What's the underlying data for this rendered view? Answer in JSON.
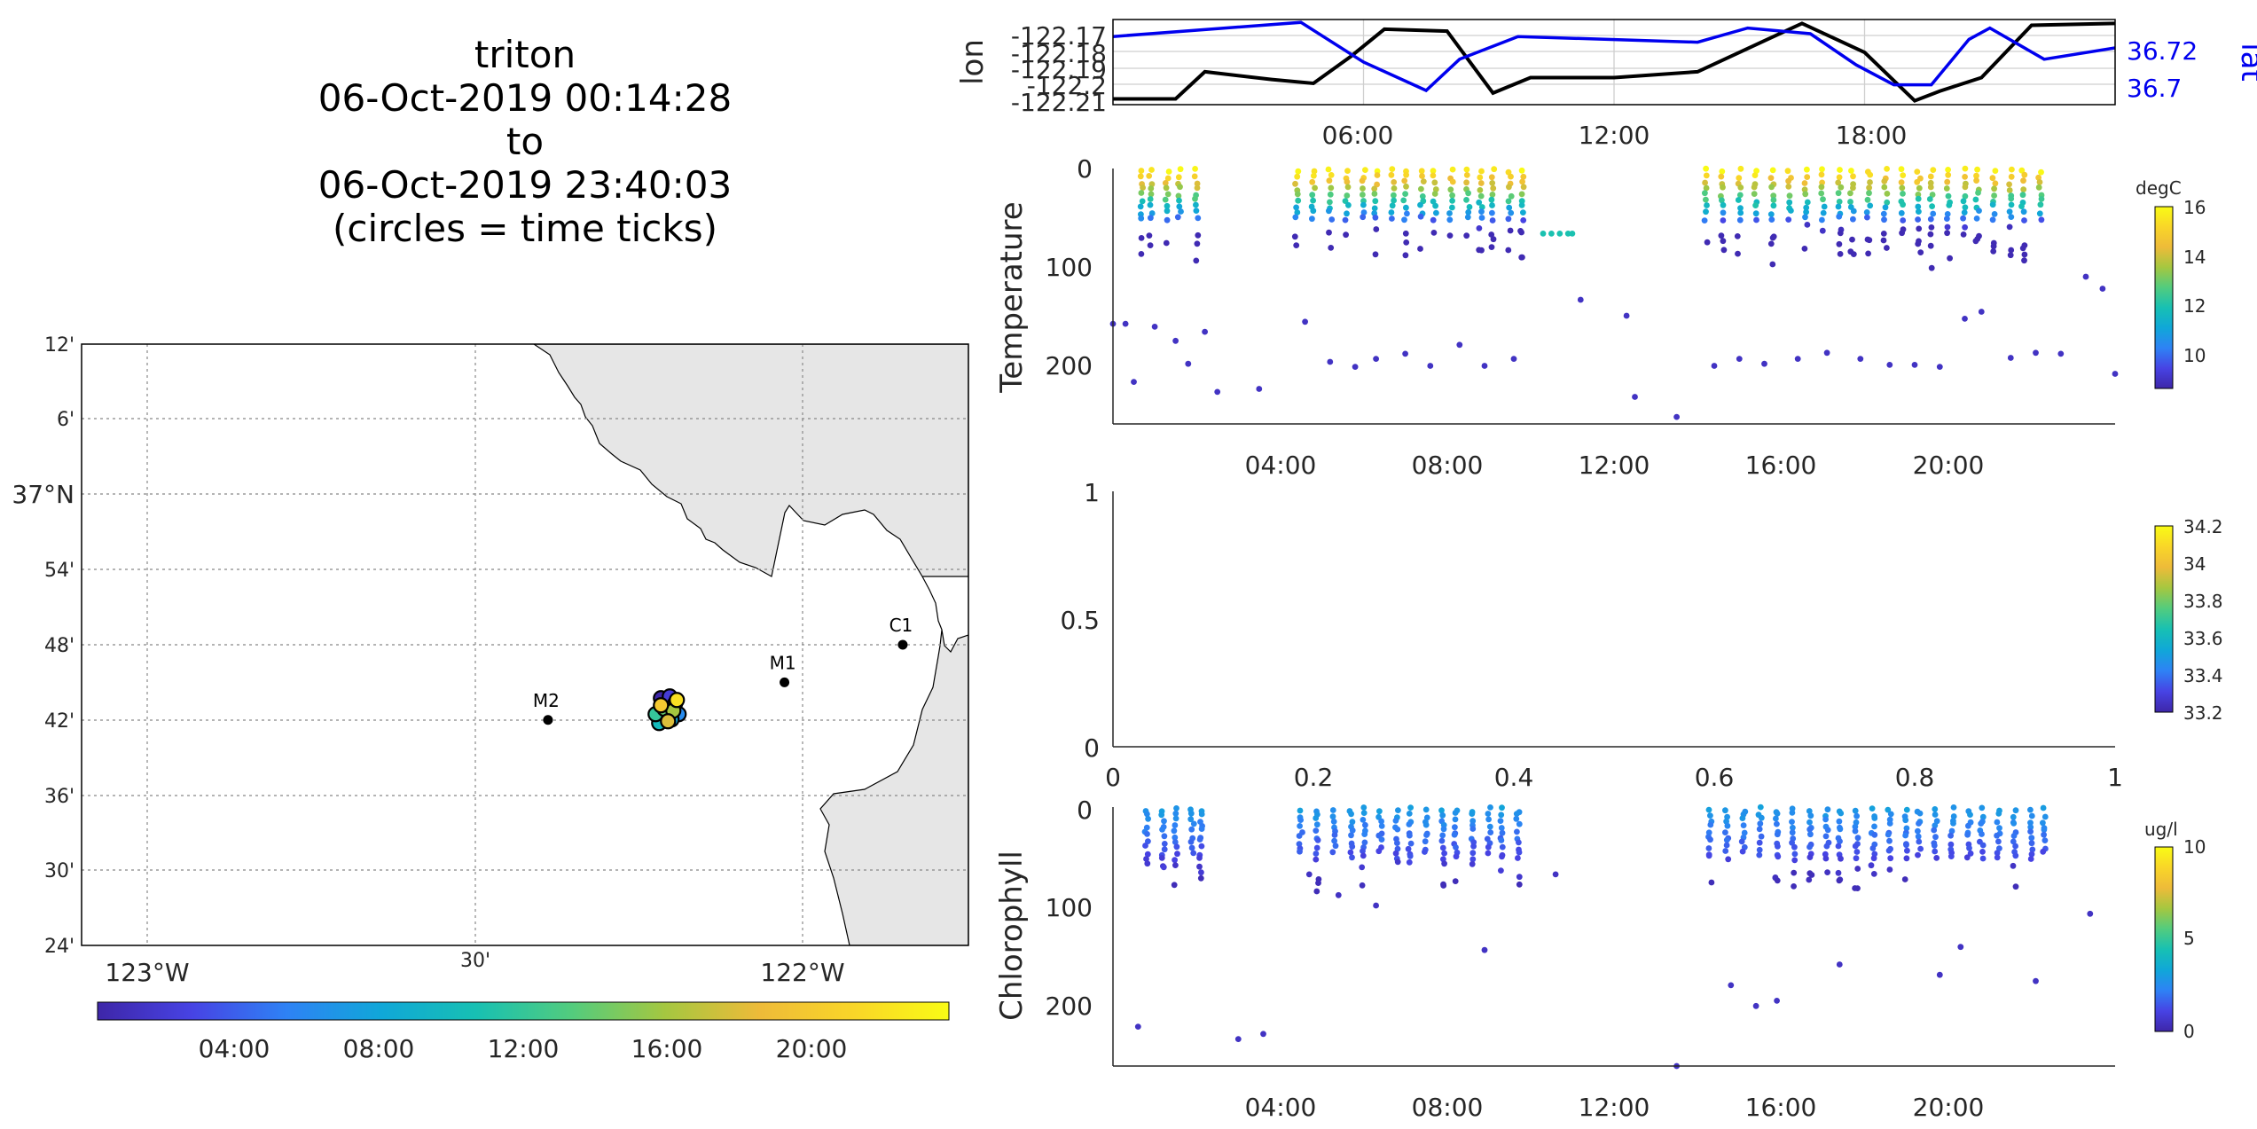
{
  "title": {
    "lines": [
      "triton",
      "06-Oct-2019 00:14:28",
      "to",
      "06-Oct-2019 23:40:03",
      "(circles = time ticks)"
    ]
  },
  "colors": {
    "coast_fill": "#e6e6e6",
    "track_lon": "#000000",
    "track_lat": "#0000ee",
    "parula": [
      "#3e26a8",
      "#4743e4",
      "#2e82f5",
      "#10a7d8",
      "#17c0b3",
      "#52cc7e",
      "#a5c740",
      "#eebb39",
      "#f9d628",
      "#f9fb15"
    ]
  },
  "map": {
    "lat_ticks": [
      "12'",
      "6'",
      "37°N",
      "54'",
      "48'",
      "42'",
      "36'",
      "30'",
      "24'"
    ],
    "lon_ticks": [
      "123°W",
      "30'",
      "122°W"
    ],
    "colorbar_ticks": [
      "04:00",
      "08:00",
      "12:00",
      "16:00",
      "20:00"
    ]
  },
  "track": {
    "y_ticks_left": [
      "-122.17",
      "-122.18",
      "-122.19",
      "-122.2",
      "-122.21"
    ],
    "y_ticks_right": [
      "36.72",
      "36.7"
    ],
    "x_ticks": [
      "06:00",
      "12:00",
      "18:00"
    ],
    "ylabel_left": "lon",
    "ylabel_right": "lat"
  },
  "temperature": {
    "ylabel": "Temperature",
    "y_ticks": [
      "0",
      "100",
      "200"
    ],
    "x_ticks": [
      "04:00",
      "08:00",
      "12:00",
      "16:00",
      "20:00"
    ],
    "cb_label": "degC",
    "cb_ticks": [
      "16",
      "14",
      "12",
      "10"
    ]
  },
  "salinity": {
    "y_ticks": [
      "1",
      "0.5",
      "0"
    ],
    "x_ticks": [
      "0",
      "0.2",
      "0.4",
      "0.6",
      "0.8",
      "1"
    ],
    "cb_ticks": [
      "34.2",
      "34",
      "33.8",
      "33.6",
      "33.4",
      "33.2"
    ]
  },
  "chlorophyll": {
    "ylabel": "Chlorophyll",
    "y_ticks": [
      "0",
      "100",
      "200"
    ],
    "x_ticks": [
      "04:00",
      "08:00",
      "12:00",
      "16:00",
      "20:00"
    ],
    "cb_label": "ug/l",
    "cb_ticks": [
      "10",
      "5",
      "0"
    ]
  },
  "chart_data": [
    {
      "type": "scatter",
      "name": "map",
      "x_range_lon": [
        -123.1,
        -121.75
      ],
      "y_range_lat": [
        36.4,
        37.2
      ],
      "stations": [
        {
          "name": "M2",
          "lon": -122.39,
          "lat": 36.7
        },
        {
          "name": "M1",
          "lon": -122.03,
          "lat": 36.75
        },
        {
          "name": "C1",
          "lon": -121.85,
          "lat": 36.8
        }
      ],
      "track_center": {
        "lon": -122.21,
        "lat": 36.71
      },
      "time_colorbar_range_hours": [
        0,
        23.67
      ]
    },
    {
      "type": "line",
      "name": "position-track",
      "x_unit": "hour",
      "xlim": [
        0,
        24
      ],
      "lon_ylim": [
        -122.212,
        -122.168
      ],
      "lat_ylim": [
        36.695,
        36.725
      ],
      "lon": [
        [
          0,
          -122.209
        ],
        [
          1.5,
          -122.209
        ],
        [
          2.2,
          -122.195
        ],
        [
          3.8,
          -122.199
        ],
        [
          4.8,
          -122.201
        ],
        [
          5.7,
          -122.187
        ],
        [
          6.5,
          -122.173
        ],
        [
          8,
          -122.174
        ],
        [
          9.1,
          -122.206
        ],
        [
          10,
          -122.198
        ],
        [
          12,
          -122.198
        ],
        [
          14,
          -122.195
        ],
        [
          15.7,
          -122.178
        ],
        [
          16.5,
          -122.17
        ],
        [
          18.0,
          -122.185
        ],
        [
          19.2,
          -122.21
        ],
        [
          19.8,
          -122.205
        ],
        [
          20.8,
          -122.198
        ],
        [
          22.0,
          -122.171
        ],
        [
          24,
          -122.17
        ]
      ],
      "lat": [
        [
          0,
          36.719
        ],
        [
          4.5,
          36.724
        ],
        [
          6.0,
          36.71
        ],
        [
          7.5,
          36.7
        ],
        [
          8.3,
          36.711
        ],
        [
          9.7,
          36.719
        ],
        [
          14,
          36.717
        ],
        [
          15.2,
          36.722
        ],
        [
          16.7,
          36.72
        ],
        [
          17.8,
          36.709
        ],
        [
          18.7,
          36.702
        ],
        [
          19.6,
          36.702
        ],
        [
          20.5,
          36.718
        ],
        [
          21.0,
          36.722
        ],
        [
          22.3,
          36.711
        ],
        [
          24,
          36.715
        ]
      ]
    },
    {
      "type": "scatter",
      "name": "temperature-profiles",
      "x_unit": "hour",
      "y_unit": "depth",
      "y_reversed": true,
      "xlim": [
        0,
        24
      ],
      "ylim": [
        0,
        255
      ],
      "color_unit": "degC",
      "clim": [
        8.7,
        16
      ],
      "profile_times": [
        0.7,
        0.9,
        1.3,
        1.6,
        2.0,
        4.4,
        4.8,
        5.2,
        5.6,
        6.0,
        6.3,
        6.7,
        7.0,
        7.4,
        7.7,
        8.1,
        8.5,
        8.8,
        9.1,
        9.5,
        9.8,
        14.2,
        14.6,
        15.0,
        15.4,
        15.8,
        16.2,
        16.6,
        17.0,
        17.4,
        17.7,
        18.1,
        18.5,
        18.9,
        19.3,
        19.6,
        20.0,
        20.4,
        20.7,
        21.1,
        21.5,
        21.8,
        22.2
      ],
      "deep_points": [
        [
          0.0,
          155
        ],
        [
          0.3,
          155
        ],
        [
          0.5,
          213
        ],
        [
          1.0,
          158
        ],
        [
          1.5,
          172
        ],
        [
          1.8,
          195
        ],
        [
          2.2,
          163
        ],
        [
          2.5,
          223
        ],
        [
          3.5,
          220
        ],
        [
          4.6,
          153
        ],
        [
          5.2,
          193
        ],
        [
          5.8,
          198
        ],
        [
          6.3,
          190
        ],
        [
          7.0,
          185
        ],
        [
          7.6,
          197
        ],
        [
          8.3,
          176
        ],
        [
          8.9,
          197
        ],
        [
          9.6,
          190
        ],
        [
          11.2,
          131
        ],
        [
          12.3,
          147
        ],
        [
          12.5,
          228
        ],
        [
          13.5,
          248
        ],
        [
          14.4,
          197
        ],
        [
          15.0,
          190
        ],
        [
          15.6,
          195
        ],
        [
          16.4,
          190
        ],
        [
          17.1,
          184
        ],
        [
          17.9,
          190
        ],
        [
          18.6,
          196
        ],
        [
          19.2,
          196
        ],
        [
          19.8,
          198
        ],
        [
          20.4,
          150
        ],
        [
          20.8,
          143
        ],
        [
          21.5,
          189
        ],
        [
          22.1,
          184
        ],
        [
          22.7,
          185
        ],
        [
          23.3,
          108
        ],
        [
          23.7,
          120
        ],
        [
          24.0,
          205
        ]
      ]
    },
    {
      "type": "scatter",
      "name": "salinity-empty",
      "xlim": [
        0,
        1
      ],
      "ylim": [
        0,
        1
      ],
      "clim": [
        33.2,
        34.2
      ],
      "values": []
    },
    {
      "type": "scatter",
      "name": "chlorophyll-profiles",
      "x_unit": "hour",
      "y_unit": "depth",
      "y_reversed": true,
      "xlim": [
        0,
        24
      ],
      "ylim": [
        0,
        250
      ],
      "color_unit": "ug/l",
      "clim": [
        0,
        10
      ],
      "profile_times": [
        0.8,
        1.2,
        1.5,
        1.9,
        2.1,
        4.5,
        4.9,
        5.3,
        5.7,
        6.0,
        6.4,
        6.8,
        7.1,
        7.5,
        7.9,
        8.2,
        8.6,
        9.0,
        9.3,
        9.7,
        14.3,
        14.7,
        15.1,
        15.5,
        15.9,
        16.3,
        16.7,
        17.1,
        17.4,
        17.8,
        18.2,
        18.6,
        19.0,
        19.3,
        19.7,
        20.1,
        20.5,
        20.8,
        21.2,
        21.6,
        22.0,
        22.3
      ],
      "deep_points": [
        [
          0.6,
          212
        ],
        [
          3.0,
          224
        ],
        [
          3.6,
          219
        ],
        [
          4.7,
          65
        ],
        [
          5.4,
          85
        ],
        [
          6.3,
          95
        ],
        [
          8.9,
          138
        ],
        [
          10.6,
          65
        ],
        [
          13.5,
          250
        ],
        [
          14.8,
          172
        ],
        [
          15.4,
          192
        ],
        [
          15.9,
          187
        ],
        [
          17.4,
          152
        ],
        [
          19.8,
          162
        ],
        [
          20.3,
          135
        ],
        [
          22.1,
          168
        ],
        [
          23.4,
          103
        ]
      ]
    }
  ]
}
